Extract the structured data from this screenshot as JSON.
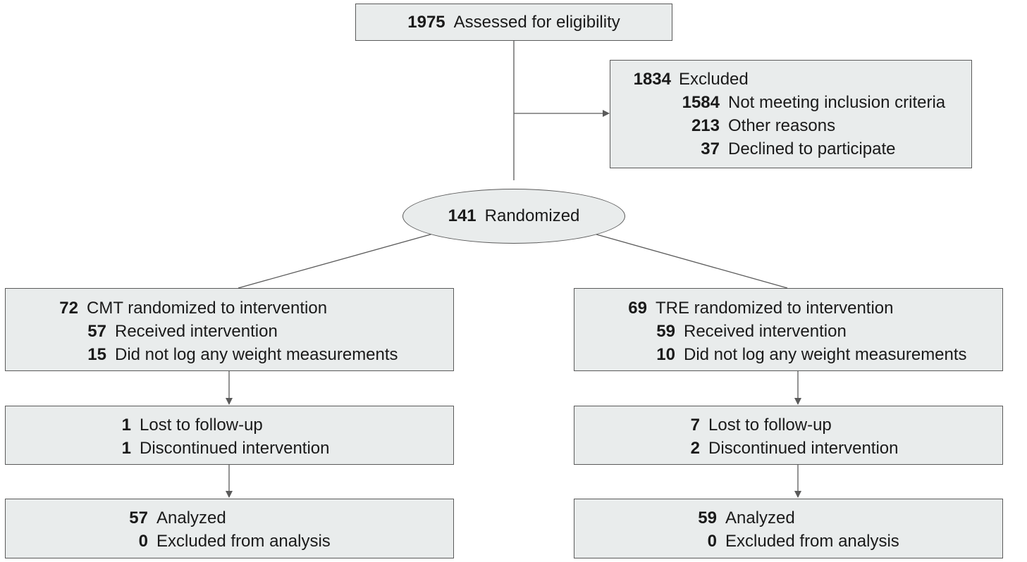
{
  "assessed": {
    "count": "1975",
    "label": "Assessed for eligibility"
  },
  "excluded": {
    "count": "1834",
    "label": "Excluded",
    "reasons": [
      {
        "count": "1584",
        "label": "Not meeting inclusion criteria"
      },
      {
        "count": "213",
        "label": "Other reasons"
      },
      {
        "count": "37",
        "label": "Declined to participate"
      }
    ]
  },
  "randomized": {
    "count": "141",
    "label": "Randomized"
  },
  "arms": [
    {
      "allocation": {
        "count": "72",
        "label": "CMT randomized to intervention",
        "items": [
          {
            "count": "57",
            "label": "Received intervention"
          },
          {
            "count": "15",
            "label": "Did not log any weight measurements"
          }
        ]
      },
      "followup": [
        {
          "count": "1",
          "label": "Lost to follow-up"
        },
        {
          "count": "1",
          "label": "Discontinued intervention"
        }
      ],
      "analysis": [
        {
          "count": "57",
          "label": "Analyzed"
        },
        {
          "count": "0",
          "label": "Excluded from analysis"
        }
      ]
    },
    {
      "allocation": {
        "count": "69",
        "label": "TRE randomized to intervention",
        "items": [
          {
            "count": "59",
            "label": "Received intervention"
          },
          {
            "count": "10",
            "label": "Did not log any weight measurements"
          }
        ]
      },
      "followup": [
        {
          "count": "7",
          "label": "Lost to follow-up"
        },
        {
          "count": "2",
          "label": "Discontinued intervention"
        }
      ],
      "analysis": [
        {
          "count": "59",
          "label": "Analyzed"
        },
        {
          "count": "0",
          "label": "Excluded from analysis"
        }
      ]
    }
  ]
}
